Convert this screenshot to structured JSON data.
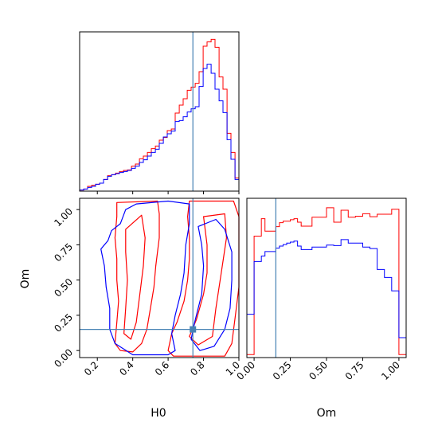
{
  "chart_data": {
    "type": "corner",
    "parameters": [
      "H0",
      "Om"
    ],
    "truths": {
      "H0": 0.74,
      "Om": 0.15
    },
    "truth_color": "#4682b4",
    "series_colors": {
      "red": "#ff0000",
      "blue": "#0000ff"
    },
    "h0_hist": {
      "type": "histogram",
      "x": "H0",
      "bin_edges": [
        0.1,
        0.123,
        0.145,
        0.168,
        0.19,
        0.213,
        0.235,
        0.258,
        0.28,
        0.303,
        0.325,
        0.348,
        0.37,
        0.393,
        0.415,
        0.438,
        0.46,
        0.483,
        0.505,
        0.528,
        0.55,
        0.573,
        0.595,
        0.618,
        0.64,
        0.663,
        0.685,
        0.708,
        0.73,
        0.753,
        0.775,
        0.798,
        0.82,
        0.843,
        0.865,
        0.888,
        0.91,
        0.933,
        0.955,
        0.978,
        1.0
      ],
      "series": [
        {
          "color": "red",
          "values": [
            0.2,
            0.4,
            0.9,
            1.1,
            1.3,
            1.5,
            2.2,
            2.9,
            3.1,
            3.4,
            3.7,
            3.9,
            4.0,
            4.7,
            5.1,
            6.1,
            6.6,
            7.3,
            8.0,
            8.5,
            9.6,
            10.1,
            11.4,
            11.7,
            14.7,
            16.2,
            17.4,
            19.0,
            19.6,
            20.3,
            22.5,
            27.3,
            28.1,
            28.6,
            27.1,
            21.5,
            19.2,
            10.9,
            7.3,
            2.5
          ]
        },
        {
          "color": "blue",
          "values": [
            0.2,
            0.4,
            0.7,
            0.9,
            1.3,
            1.5,
            2.2,
            2.8,
            3.1,
            3.3,
            3.5,
            3.7,
            3.9,
            4.3,
            4.7,
            5.4,
            5.9,
            6.6,
            7.3,
            7.9,
            9.0,
            10.2,
            10.8,
            11.3,
            13.1,
            13.3,
            14.0,
            14.9,
            15.5,
            15.9,
            19.7,
            23.1,
            23.9,
            22.2,
            19.2,
            17.0,
            14.8,
            9.7,
            6.0,
            2.2
          ]
        }
      ]
    },
    "om_hist": {
      "type": "histogram",
      "x": "Om",
      "bin_edges": [
        -0.05,
        -0.025,
        0.0,
        0.025,
        0.05,
        0.075,
        0.1,
        0.125,
        0.15,
        0.175,
        0.2,
        0.225,
        0.25,
        0.275,
        0.3,
        0.325,
        0.35,
        0.375,
        0.4,
        0.425,
        0.45,
        0.475,
        0.5,
        0.525,
        0.55,
        0.575,
        0.6,
        0.625,
        0.65,
        0.675,
        0.7,
        0.725,
        0.75,
        0.775,
        0.8,
        0.825,
        0.85,
        0.875,
        0.9,
        0.925,
        0.95,
        0.975,
        1.0,
        1.025,
        1.05
      ],
      "series": [
        {
          "color": "red",
          "values": [
            0.6,
            0.6,
            24.4,
            24.4,
            27.9,
            25.4,
            25.4,
            25.4,
            26.3,
            27.1,
            27.4,
            27.4,
            27.7,
            27.9,
            27.2,
            26.4,
            26.4,
            26.4,
            28.2,
            28.2,
            28.2,
            28.2,
            30.1,
            30.1,
            27.2,
            27.2,
            29.6,
            29.6,
            28.2,
            28.2,
            28.4,
            28.4,
            28.9,
            28.9,
            28.3,
            28.3,
            28.8,
            28.8,
            28.8,
            28.8,
            29.8,
            29.8,
            0.6,
            0.6
          ]
        },
        {
          "color": "blue",
          "values": [
            8.7,
            8.7,
            19.3,
            19.3,
            20.4,
            21.3,
            21.3,
            21.3,
            22.0,
            22.4,
            22.7,
            23.0,
            23.2,
            23.4,
            22.4,
            21.7,
            21.7,
            21.7,
            22.2,
            22.2,
            22.2,
            22.2,
            22.6,
            22.6,
            22.5,
            22.5,
            23.7,
            23.7,
            23.0,
            23.0,
            23.0,
            23.0,
            22.2,
            22.2,
            21.9,
            21.9,
            17.7,
            17.7,
            16.1,
            16.1,
            13.4,
            13.4,
            4.0,
            4.0
          ]
        }
      ]
    },
    "joint": {
      "type": "contour",
      "x": "H0",
      "y": "Om",
      "xlim": [
        0.1,
        1.0
      ],
      "ylim": [
        -0.05,
        1.08
      ],
      "series": [
        {
          "color": "red",
          "paths": [
            [
              [
                0.31,
                1.05
              ],
              [
                0.54,
                1.06
              ],
              [
                0.55,
                0.97
              ],
              [
                0.55,
                0.8
              ],
              [
                0.53,
                0.6
              ],
              [
                0.52,
                0.45
              ],
              [
                0.5,
                0.3
              ],
              [
                0.48,
                0.15
              ],
              [
                0.45,
                0.05
              ],
              [
                0.4,
                -0.01
              ],
              [
                0.33,
                0.0
              ],
              [
                0.3,
                0.05
              ],
              [
                0.31,
                0.2
              ],
              [
                0.32,
                0.35
              ],
              [
                0.31,
                0.5
              ],
              [
                0.31,
                0.65
              ],
              [
                0.3,
                0.8
              ],
              [
                0.31,
                0.95
              ],
              [
                0.31,
                1.05
              ]
            ],
            [
              [
                0.36,
                0.86
              ],
              [
                0.45,
                0.96
              ],
              [
                0.47,
                0.8
              ],
              [
                0.46,
                0.6
              ],
              [
                0.44,
                0.4
              ],
              [
                0.42,
                0.2
              ],
              [
                0.39,
                0.08
              ],
              [
                0.35,
                0.12
              ],
              [
                0.36,
                0.3
              ],
              [
                0.37,
                0.5
              ],
              [
                0.36,
                0.7
              ],
              [
                0.36,
                0.86
              ]
            ],
            [
              [
                0.72,
                1.06
              ],
              [
                0.97,
                1.06
              ],
              [
                1.0,
                0.95
              ],
              [
                1.0,
                0.45
              ],
              [
                0.98,
                0.25
              ],
              [
                0.96,
                0.05
              ],
              [
                0.92,
                -0.04
              ],
              [
                0.63,
                -0.04
              ],
              [
                0.6,
                0.0
              ],
              [
                0.62,
                0.12
              ],
              [
                0.65,
                0.2
              ],
              [
                0.69,
                0.35
              ],
              [
                0.71,
                0.5
              ],
              [
                0.72,
                0.65
              ],
              [
                0.72,
                0.8
              ],
              [
                0.71,
                0.95
              ],
              [
                0.72,
                1.06
              ]
            ],
            [
              [
                0.8,
                0.95
              ],
              [
                0.92,
                0.97
              ],
              [
                0.93,
                0.8
              ],
              [
                0.9,
                0.55
              ],
              [
                0.87,
                0.3
              ],
              [
                0.85,
                0.1
              ],
              [
                0.77,
                0.04
              ],
              [
                0.72,
                0.1
              ],
              [
                0.76,
                0.22
              ],
              [
                0.8,
                0.4
              ],
              [
                0.82,
                0.55
              ],
              [
                0.82,
                0.75
              ],
              [
                0.8,
                0.95
              ]
            ]
          ]
        },
        {
          "color": "blue",
          "paths": [
            [
              [
                0.22,
                0.72
              ],
              [
                0.26,
                0.78
              ],
              [
                0.28,
                0.85
              ],
              [
                0.33,
                0.9
              ],
              [
                0.36,
                1.0
              ],
              [
                0.42,
                1.04
              ],
              [
                0.6,
                1.06
              ],
              [
                0.72,
                1.04
              ],
              [
                0.72,
                0.9
              ],
              [
                0.7,
                0.75
              ],
              [
                0.69,
                0.55
              ],
              [
                0.67,
                0.4
              ],
              [
                0.64,
                0.25
              ],
              [
                0.62,
                0.12
              ],
              [
                0.64,
                0.0
              ],
              [
                0.6,
                -0.03
              ],
              [
                0.4,
                -0.03
              ],
              [
                0.3,
                0.05
              ],
              [
                0.27,
                0.15
              ],
              [
                0.27,
                0.3
              ],
              [
                0.25,
                0.45
              ],
              [
                0.24,
                0.6
              ],
              [
                0.22,
                0.72
              ]
            ],
            [
              [
                0.77,
                0.88
              ],
              [
                0.87,
                0.93
              ],
              [
                0.92,
                0.86
              ],
              [
                0.96,
                0.7
              ],
              [
                0.96,
                0.5
              ],
              [
                0.95,
                0.3
              ],
              [
                0.92,
                0.15
              ],
              [
                0.86,
                0.03
              ],
              [
                0.78,
                0.0
              ],
              [
                0.73,
                0.08
              ],
              [
                0.75,
                0.2
              ],
              [
                0.79,
                0.4
              ],
              [
                0.8,
                0.6
              ],
              [
                0.79,
                0.75
              ],
              [
                0.77,
                0.88
              ]
            ]
          ]
        }
      ]
    },
    "axes": {
      "H0": {
        "ticks": [
          0.2,
          0.4,
          0.6,
          0.8,
          1.0
        ],
        "tick_labels": [
          "0.2",
          "0.4",
          "0.6",
          "0.8",
          "1.0"
        ],
        "label": "H0"
      },
      "Om_y": {
        "ticks": [
          0.0,
          0.25,
          0.5,
          0.75,
          1.0
        ],
        "tick_labels": [
          "0.00",
          "0.25",
          "0.50",
          "0.75",
          "1.00"
        ],
        "label": "Om"
      },
      "Om_x": {
        "ticks": [
          0.0,
          0.25,
          0.5,
          0.75,
          1.0
        ],
        "tick_labels": [
          "0.00",
          "0.25",
          "0.50",
          "0.75",
          "1.00"
        ],
        "label": "Om"
      }
    }
  }
}
